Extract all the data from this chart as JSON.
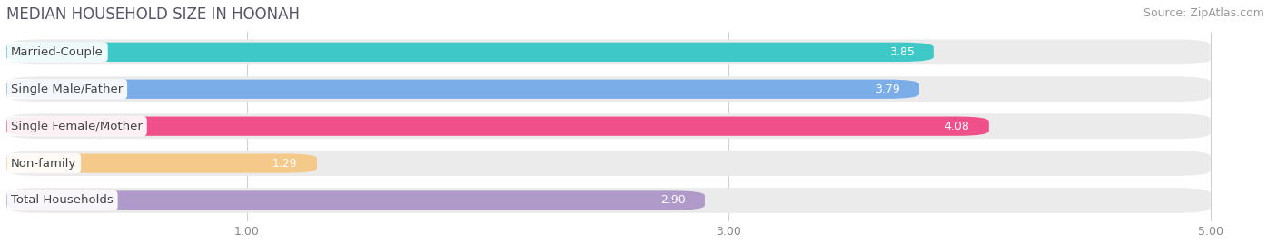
{
  "title": "MEDIAN HOUSEHOLD SIZE IN HOONAH",
  "source": "Source: ZipAtlas.com",
  "categories": [
    "Married-Couple",
    "Single Male/Father",
    "Single Female/Mother",
    "Non-family",
    "Total Households"
  ],
  "values": [
    3.85,
    3.79,
    4.08,
    1.29,
    2.9
  ],
  "bar_colors": [
    "#3ec8c8",
    "#7baee8",
    "#f0508a",
    "#f5c98a",
    "#b09aca"
  ],
  "bar_bg_color": "#ebebeb",
  "xlim": [
    0.0,
    5.25
  ],
  "xmin": 0.0,
  "xmax": 5.0,
  "xticks": [
    1.0,
    3.0,
    5.0
  ],
  "background_color": "#ffffff",
  "title_fontsize": 12,
  "source_fontsize": 9,
  "label_fontsize": 9.5,
  "value_fontsize": 9
}
